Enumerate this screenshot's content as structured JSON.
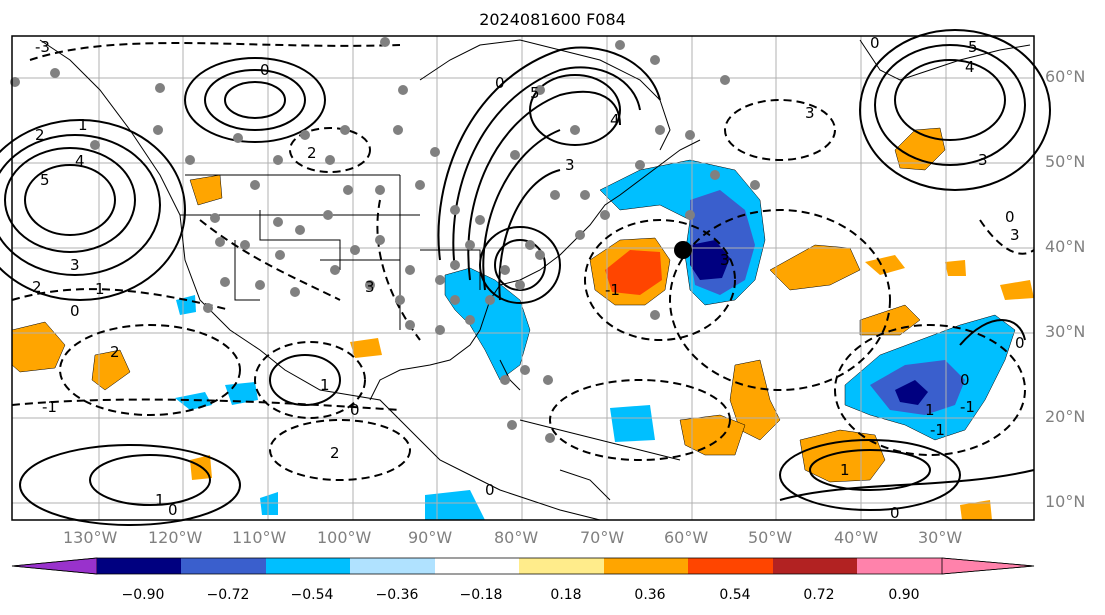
{
  "title": "2024081600 F084",
  "map": {
    "lat_labels": [
      "60°N",
      "50°N",
      "40°N",
      "30°N",
      "20°N",
      "10°N"
    ],
    "lon_labels": [
      "130°W",
      "120°W",
      "110°W",
      "100°W",
      "90°W",
      "80°W",
      "70°W",
      "60°W",
      "50°W",
      "40°W",
      "30°W"
    ],
    "contour_labels": [
      "-3",
      "0",
      "2",
      "1",
      "2",
      "4",
      "5",
      "3",
      "2",
      "0",
      "1",
      "-1",
      "2",
      "3",
      "3",
      "0",
      "0",
      "4",
      "5",
      "3",
      "3",
      "3",
      "4",
      "5",
      "0",
      "3",
      "-1",
      "0",
      "0",
      "1",
      "-1",
      "1",
      "0",
      "2",
      "-1",
      "1",
      "0",
      "0",
      "1",
      "0"
    ]
  },
  "colorbar": {
    "ticks": [
      "−0.90",
      "−0.72",
      "−0.54",
      "−0.36",
      "−0.18",
      "0.18",
      "0.36",
      "0.54",
      "0.72",
      "0.90"
    ],
    "colors": [
      "#9932cc",
      "#000080",
      "#3a5fcd",
      "#00bfff",
      "#b0e2ff",
      "#ffffff",
      "#ffec8b",
      "#ffa500",
      "#ff4500",
      "#b22222",
      "#ff82ab"
    ]
  },
  "legend_colors": {
    "contour": "#000000",
    "station": "#808080",
    "marker": "#000000",
    "gridline": "#b0b0b0"
  }
}
